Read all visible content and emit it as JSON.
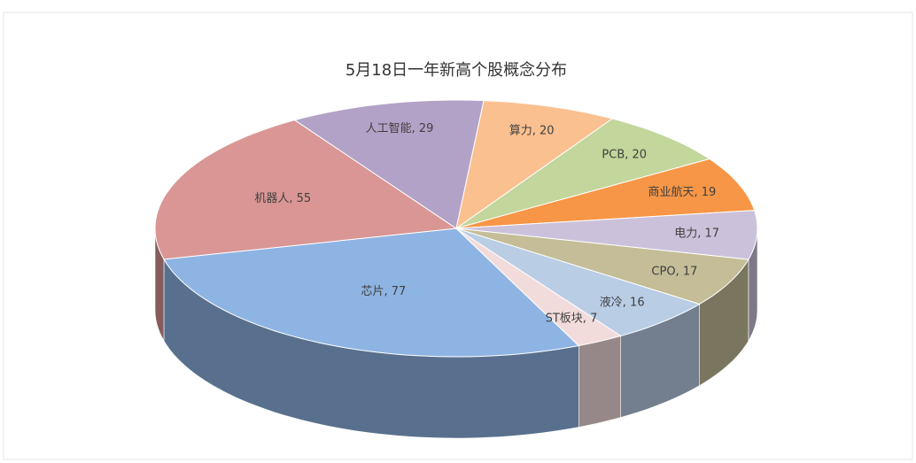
{
  "chart_data": {
    "type": "pie3d",
    "title": "5月18日一年新高个股概念分布",
    "values": [
      77,
      55,
      29,
      20,
      20,
      19,
      17,
      17,
      16,
      7
    ],
    "value_labels": [
      "芯片, 77",
      "机器人, 55",
      "人工智能, 29",
      "算力, 20",
      "PCB, 20",
      "商业航天, 19",
      "电力, 17",
      "CPO, 17",
      "液冷, 16",
      "ST板块, 7"
    ],
    "colors": [
      "#8eb4e3",
      "#d99694",
      "#b3a2c7",
      "#fac090",
      "#c3d69b",
      "#f79646",
      "#ccc1da",
      "#c4bd97",
      "#b9cde5",
      "#f2dcdb"
    ]
  }
}
